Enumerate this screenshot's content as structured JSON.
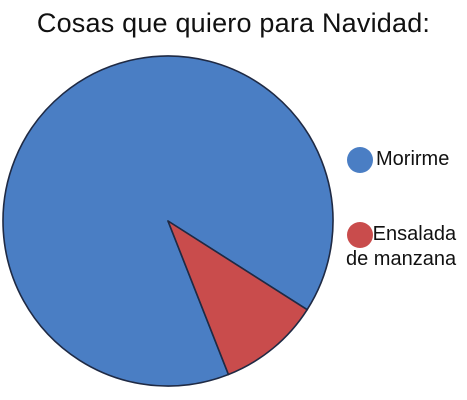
{
  "chart_data": {
    "type": "pie",
    "title": "Cosas que quiero para Navidad:",
    "slices": [
      {
        "label": "Morirme",
        "value": 90,
        "color": "#4a7ec4"
      },
      {
        "label": "Ensalada\nde manzana",
        "value": 10,
        "color": "#c94c4c"
      }
    ],
    "legend": "right"
  }
}
